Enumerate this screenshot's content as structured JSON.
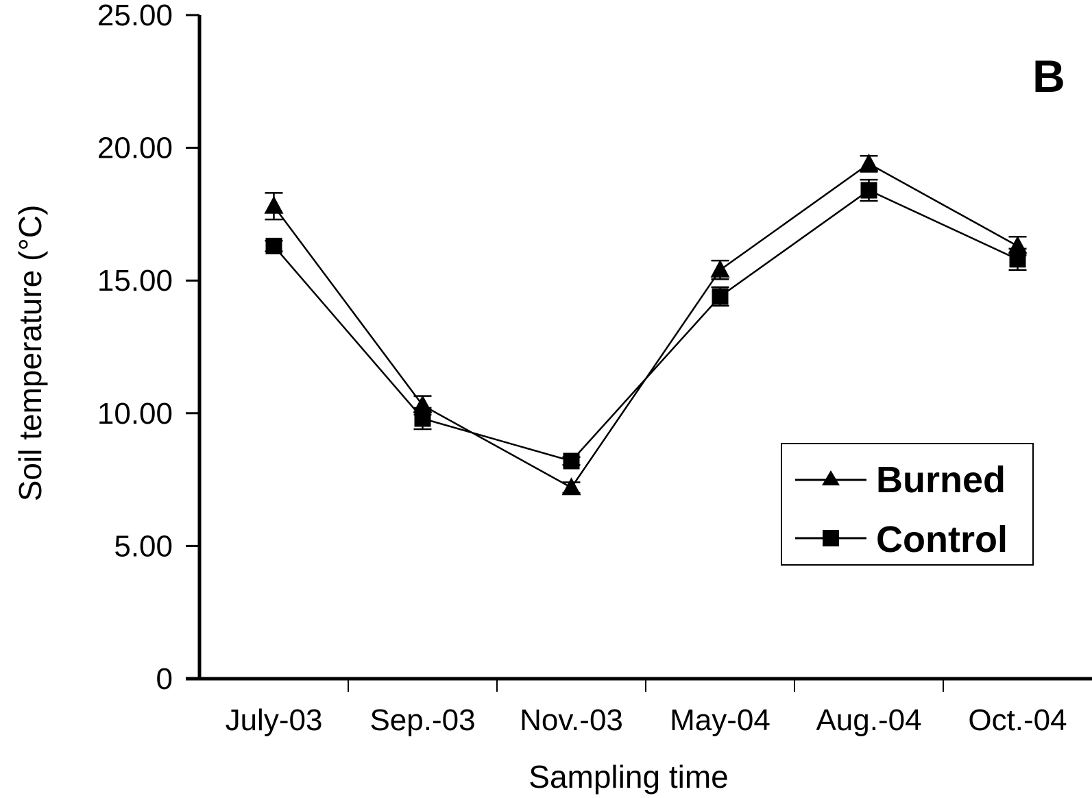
{
  "chart_data": {
    "type": "line",
    "panel_label": "B",
    "xlabel": "Sampling time",
    "ylabel": "Soil temperature (°C)",
    "ylim": [
      0,
      25
    ],
    "y_ticks": [
      {
        "value": 0,
        "label": "0"
      },
      {
        "value": 5,
        "label": "5.00"
      },
      {
        "value": 10,
        "label": "10.00"
      },
      {
        "value": 15,
        "label": "15.00"
      },
      {
        "value": 20,
        "label": "20.00"
      },
      {
        "value": 25,
        "label": "25.00"
      }
    ],
    "categories": [
      "July-03",
      "Sep.-03",
      "Nov.-03",
      "May-04",
      "Aug.-04",
      "Oct.-04"
    ],
    "series": [
      {
        "name": "Burned",
        "marker": "triangle",
        "values": [
          17.8,
          10.3,
          7.2,
          15.4,
          19.4,
          16.3
        ],
        "errors": [
          0.5,
          0.35,
          0.2,
          0.35,
          0.3,
          0.35
        ]
      },
      {
        "name": "Control",
        "marker": "square",
        "values": [
          16.3,
          9.8,
          8.2,
          14.4,
          18.4,
          15.8
        ],
        "errors": [
          0.2,
          0.4,
          0.15,
          0.35,
          0.4,
          0.4
        ]
      }
    ],
    "legend_position": "middle-right",
    "grid": false,
    "colors": {
      "line": "#000000",
      "background": "#ffffff"
    }
  }
}
